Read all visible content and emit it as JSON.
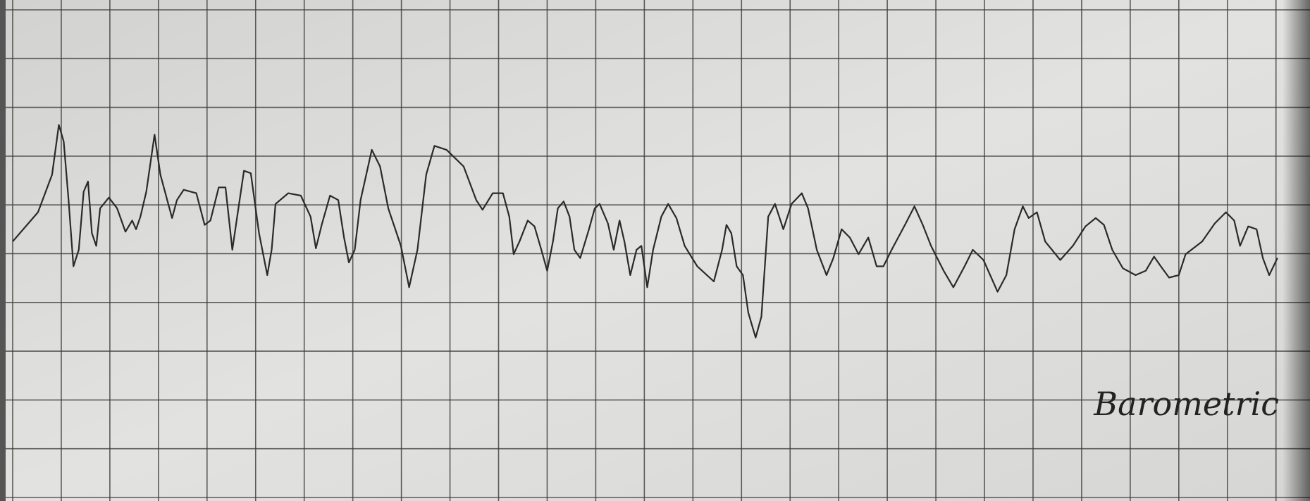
{
  "chart_data": {
    "type": "line",
    "label": "Barometric",
    "x": [
      0,
      0.52,
      0.81,
      0.95,
      1.05,
      1.15,
      1.25,
      1.36,
      1.46,
      1.55,
      1.63,
      1.72,
      1.8,
      1.98,
      2.15,
      2.32,
      2.46,
      2.54,
      2.63,
      2.75,
      2.92,
      3.04,
      3.18,
      3.28,
      3.38,
      3.52,
      3.78,
      3.95,
      4.07,
      4.24,
      4.38,
      4.52,
      4.62,
      4.76,
      4.9,
      5.07,
      5.24,
      5.33,
      5.41,
      5.67,
      5.93,
      6.13,
      6.24,
      6.36,
      6.53,
      6.7,
      6.82,
      6.92,
      7.04,
      7.16,
      7.39,
      7.56,
      7.73,
      7.99,
      8.16,
      8.33,
      8.51,
      8.68,
      8.93,
      9.28,
      9.54,
      9.67,
      9.88,
      10.09,
      10.22,
      10.31,
      10.43,
      10.6,
      10.74,
      10.88,
      11.0,
      11.12,
      11.22,
      11.34,
      11.46,
      11.56,
      11.68,
      11.86,
      11.98,
      12.08,
      12.25,
      12.37,
      12.49,
      12.59,
      12.71,
      12.84,
      12.94,
      13.06,
      13.18,
      13.35,
      13.49,
      13.66,
      13.83,
      14.09,
      14.43,
      14.6,
      14.69,
      14.79,
      14.9,
      15.03,
      15.14,
      15.29,
      15.41,
      15.55,
      15.69,
      15.86,
      16.03,
      16.24,
      16.37,
      16.55,
      16.75,
      16.89,
      17.06,
      17.23,
      17.41,
      17.61,
      17.78,
      17.92,
      18.09,
      18.38,
      18.56,
      18.73,
      18.9,
      19.16,
      19.36,
      19.59,
      19.76,
      19.98,
      20.27,
      20.45,
      20.62,
      20.79,
      20.91,
      21.08,
      21.25,
      21.56,
      21.82,
      22.08,
      22.29,
      22.46,
      22.63,
      22.85,
      23.11,
      23.32,
      23.49,
      23.63,
      23.8,
      24.0,
      24.14,
      24.48,
      24.74,
      24.97,
      25.14,
      25.26,
      25.43,
      25.6,
      25.73,
      25.86,
      26.03
    ],
    "series": [
      {
        "color": "#2a2a2a",
        "values": [
          5.25,
          5.85,
          6.62,
          7.64,
          7.3,
          6.1,
          4.74,
          5.08,
          6.27,
          6.48,
          5.42,
          5.16,
          5.93,
          6.15,
          5.93,
          5.45,
          5.68,
          5.5,
          5.76,
          6.27,
          7.44,
          6.62,
          6.1,
          5.73,
          6.1,
          6.31,
          6.24,
          5.59,
          5.68,
          6.36,
          6.36,
          5.08,
          5.76,
          6.7,
          6.65,
          5.42,
          4.56,
          5.08,
          6.02,
          6.24,
          6.19,
          5.76,
          5.11,
          5.59,
          6.19,
          6.1,
          5.33,
          4.82,
          5.08,
          6.1,
          7.13,
          6.79,
          5.93,
          5.16,
          4.31,
          5.08,
          6.62,
          7.21,
          7.13,
          6.79,
          6.1,
          5.9,
          6.24,
          6.24,
          5.76,
          4.99,
          5.25,
          5.68,
          5.56,
          5.08,
          4.65,
          5.25,
          5.93,
          6.07,
          5.76,
          5.08,
          4.91,
          5.5,
          5.93,
          6.02,
          5.62,
          5.08,
          5.68,
          5.25,
          4.56,
          5.08,
          5.16,
          4.31,
          5.08,
          5.76,
          6.02,
          5.73,
          5.16,
          4.74,
          4.43,
          5.08,
          5.59,
          5.42,
          4.74,
          4.56,
          3.79,
          3.28,
          3.71,
          5.76,
          6.02,
          5.5,
          6.02,
          6.24,
          5.93,
          5.08,
          4.56,
          4.91,
          5.5,
          5.33,
          4.99,
          5.33,
          4.74,
          4.74,
          5.08,
          5.62,
          5.97,
          5.59,
          5.16,
          4.65,
          4.31,
          4.74,
          5.08,
          4.87,
          4.22,
          4.56,
          5.5,
          5.97,
          5.73,
          5.85,
          5.25,
          4.87,
          5.16,
          5.56,
          5.73,
          5.59,
          5.08,
          4.7,
          4.56,
          4.65,
          4.94,
          4.74,
          4.51,
          4.56,
          4.99,
          5.25,
          5.62,
          5.85,
          5.68,
          5.16,
          5.56,
          5.5,
          4.91,
          4.56,
          4.91
        ]
      }
    ],
    "xlim": [
      0,
      26.7
    ],
    "ylim": [
      0,
      10
    ],
    "xticks": [
      0,
      1,
      2,
      3,
      4,
      5,
      6,
      7,
      8,
      9,
      10,
      11,
      12,
      13,
      14,
      15,
      16,
      17,
      18,
      19,
      20,
      21,
      22,
      23,
      24,
      25,
      26
    ],
    "yticks": [
      0,
      1,
      2,
      3,
      4,
      5,
      6,
      7,
      8,
      9,
      10
    ],
    "grid": true
  }
}
